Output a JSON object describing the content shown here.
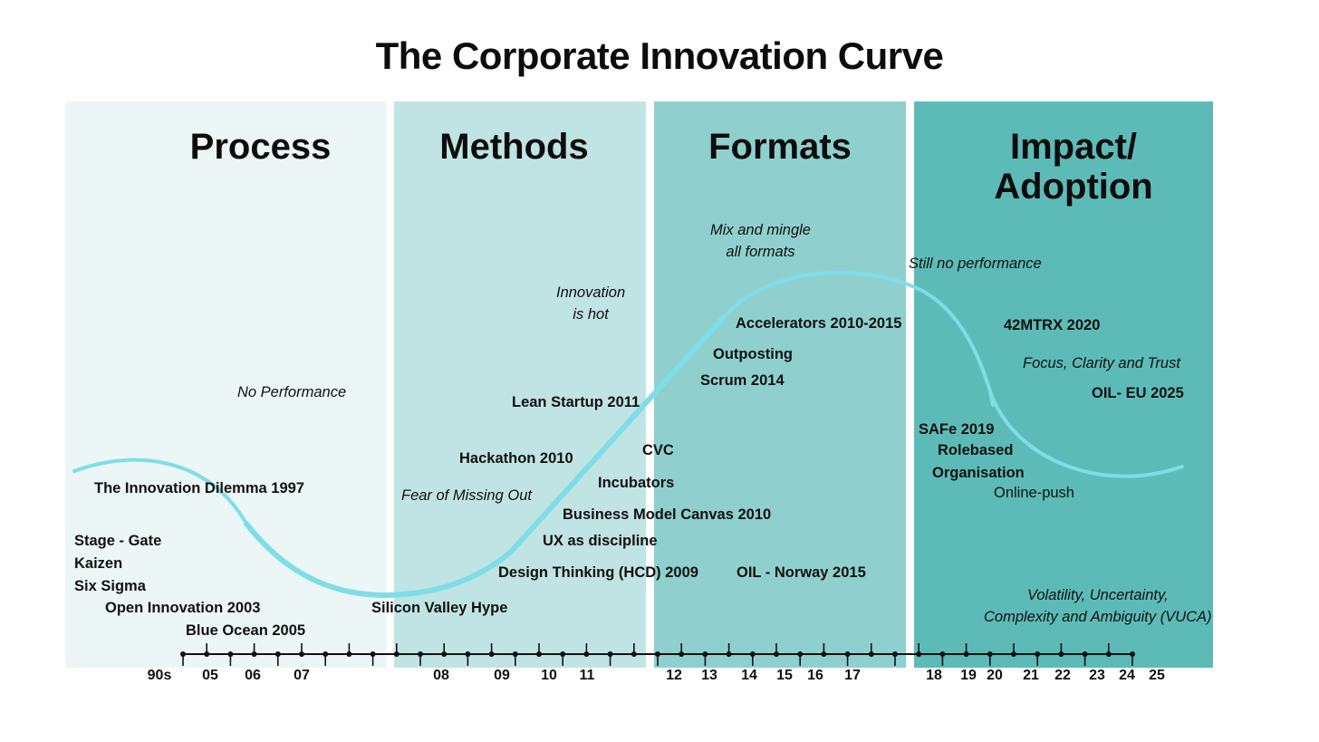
{
  "title": "The Corporate Innovation Curve",
  "colors": {
    "phase_backgrounds": [
      "#ecf6f6",
      "#c0e4e3",
      "#8fd0ce",
      "#5dbbb7"
    ],
    "curve": "#7fdde8",
    "axis": "#111111"
  },
  "phases": [
    {
      "title": "Process"
    },
    {
      "title": "Methods"
    },
    {
      "title": "Formats"
    },
    {
      "title": "Impact/\nAdoption"
    }
  ],
  "timeline_labels": [
    "90s",
    "05",
    "06",
    "07",
    "08",
    "09",
    "10",
    "11",
    "12",
    "13",
    "14",
    "15",
    "16",
    "17",
    "18",
    "19",
    "20",
    "21",
    "22",
    "23",
    "24",
    "25"
  ],
  "milestones": [
    "The Innovation Dilemma 1997",
    "Stage - Gate",
    "Kaizen",
    "Six Sigma",
    "Open Innovation 2003",
    "Blue Ocean 2005",
    "Silicon Valley Hype",
    "Design Thinking (HCD) 2009",
    "UX as discipline",
    "Business Model Canvas 2010",
    "Incubators",
    "Hackathon 2010",
    "CVC",
    "Lean Startup 2011",
    "Scrum 2014",
    "Outposting",
    "Accelerators 2010-2015",
    "OIL - Norway 2015",
    "SAFe 2019",
    "Rolebased",
    "Organisation",
    "42MTRX 2020",
    "OIL- EU 2025"
  ],
  "extra_labels": [
    "Online-push"
  ],
  "notes": [
    "No Performance",
    "Fear of Missing Out",
    "Innovation\nis hot",
    "Mix and mingle\nall formats",
    "Still no performance",
    "Focus, Clarity and Trust",
    "Volatility, Uncertainty,\nComplexity and Ambiguity (VUCA)"
  ]
}
